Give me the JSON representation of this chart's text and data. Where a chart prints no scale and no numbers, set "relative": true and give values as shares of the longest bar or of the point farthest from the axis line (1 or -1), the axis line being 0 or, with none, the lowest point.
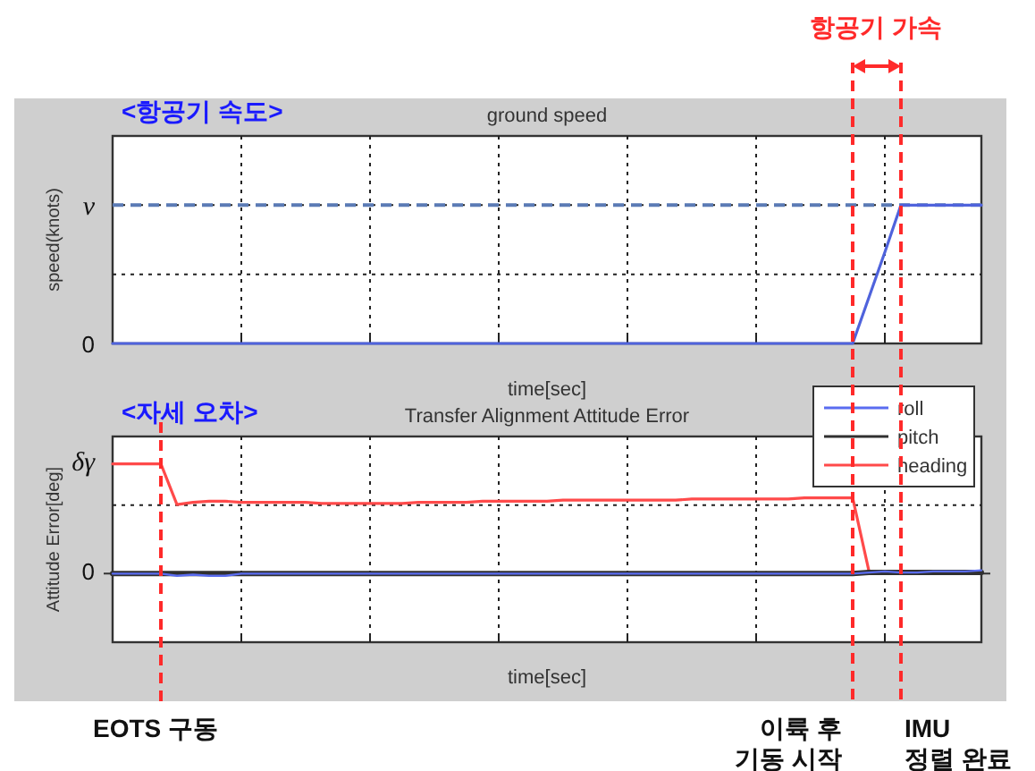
{
  "chart_data": [
    {
      "type": "line",
      "relative": true,
      "title": "ground speed",
      "xlabel": "time[sec]",
      "ylabel": "speed(knots)",
      "annotations": [
        "<항공기 속도>",
        "0",
        "v",
        "항공기 가속"
      ],
      "categories": [
        null,
        null,
        null,
        null,
        null,
        null,
        null,
        null,
        null,
        null,
        null,
        null,
        null,
        null,
        null,
        null,
        null,
        null,
        null,
        null,
        null,
        null,
        null,
        null,
        null,
        null,
        null,
        null,
        null,
        null,
        null,
        null,
        null,
        null,
        null,
        null,
        null,
        null,
        null,
        null,
        null,
        null,
        null,
        null,
        null,
        null,
        null,
        null,
        null,
        null,
        null,
        null,
        null,
        null,
        null
      ],
      "series": [
        {
          "color": "#4f63dc",
          "values": [
            0,
            0,
            0,
            0,
            0,
            0,
            0,
            0,
            0,
            0,
            0,
            0,
            0,
            0,
            0,
            0,
            0,
            0,
            0,
            0,
            0,
            0,
            0,
            0,
            0,
            0,
            0,
            0,
            0,
            0,
            0,
            0,
            0,
            0,
            0,
            0,
            0,
            0,
            0,
            0,
            0,
            0,
            0,
            0,
            0,
            0,
            0,
            0.33,
            0.66,
            1,
            1,
            1,
            1,
            1,
            1
          ]
        }
      ],
      "grid": true,
      "ref_lines": [
        {
          "axis": "y",
          "value": 1,
          "color": "#5b7bb5",
          "line_style": "dashed"
        }
      ]
    },
    {
      "type": "line",
      "relative": true,
      "title": "Transfer Alignment Attitude Error",
      "xlabel": "time[sec]",
      "ylabel": "Attitude Error[deg]",
      "annotations": [
        "<자세 오차>",
        "δγ",
        "0",
        "EOTS 구동",
        "이륙 후 기동 시작",
        "IMU 정렬 완료"
      ],
      "categories": [
        null,
        null,
        null,
        null,
        null,
        null,
        null,
        null,
        null,
        null,
        null,
        null,
        null,
        null,
        null,
        null,
        null,
        null,
        null,
        null,
        null,
        null,
        null,
        null,
        null,
        null,
        null,
        null,
        null,
        null,
        null,
        null,
        null,
        null,
        null,
        null,
        null,
        null,
        null,
        null,
        null,
        null,
        null,
        null,
        null,
        null,
        null,
        null,
        null,
        null,
        null,
        null,
        null,
        null,
        null
      ],
      "series": [
        {
          "name": "roll",
          "color": "#5a6cf0",
          "values": [
            0,
            0,
            0,
            0,
            -0.02,
            -0.01,
            -0.02,
            -0.02,
            0,
            0,
            0,
            0,
            0,
            0,
            0,
            0,
            0,
            0,
            0,
            0,
            0,
            0,
            0,
            0,
            0,
            0,
            0,
            0,
            0,
            0,
            0,
            0,
            0,
            0,
            0,
            0,
            0,
            0,
            0,
            0,
            0,
            0,
            0,
            0,
            0,
            0,
            0,
            0.01,
            0.02,
            0.01,
            0.01,
            0.02,
            0.02,
            0.02,
            0.03
          ]
        },
        {
          "name": "pitch",
          "color": "#303030",
          "values": [
            0,
            0,
            0,
            0,
            0,
            0,
            0,
            0,
            0,
            0,
            0,
            0,
            0,
            0,
            0,
            0,
            0,
            0,
            0,
            0,
            0,
            0,
            0,
            0,
            0,
            0,
            0,
            0,
            0,
            0,
            0,
            0,
            0,
            0,
            0,
            0,
            0,
            0,
            0,
            0,
            0,
            0,
            0,
            0,
            0,
            0,
            0,
            0.01,
            0.01,
            0.01,
            0.01,
            0.01,
            0.01,
            0.01,
            0.01
          ]
        },
        {
          "name": "heading",
          "color": "#ff4a4a",
          "values": [
            1,
            1,
            1,
            1,
            0.63,
            0.65,
            0.66,
            0.66,
            0.65,
            0.65,
            0.65,
            0.65,
            0.65,
            0.64,
            0.64,
            0.64,
            0.64,
            0.64,
            0.64,
            0.65,
            0.65,
            0.65,
            0.65,
            0.66,
            0.66,
            0.66,
            0.66,
            0.66,
            0.67,
            0.67,
            0.67,
            0.67,
            0.67,
            0.67,
            0.67,
            0.67,
            0.68,
            0.68,
            0.68,
            0.68,
            0.68,
            0.68,
            0.68,
            0.69,
            0.69,
            0.69,
            0.69,
            0.03,
            null,
            null,
            null,
            null,
            null,
            null,
            null
          ]
        }
      ],
      "grid": true,
      "legend": "top right"
    }
  ]
}
